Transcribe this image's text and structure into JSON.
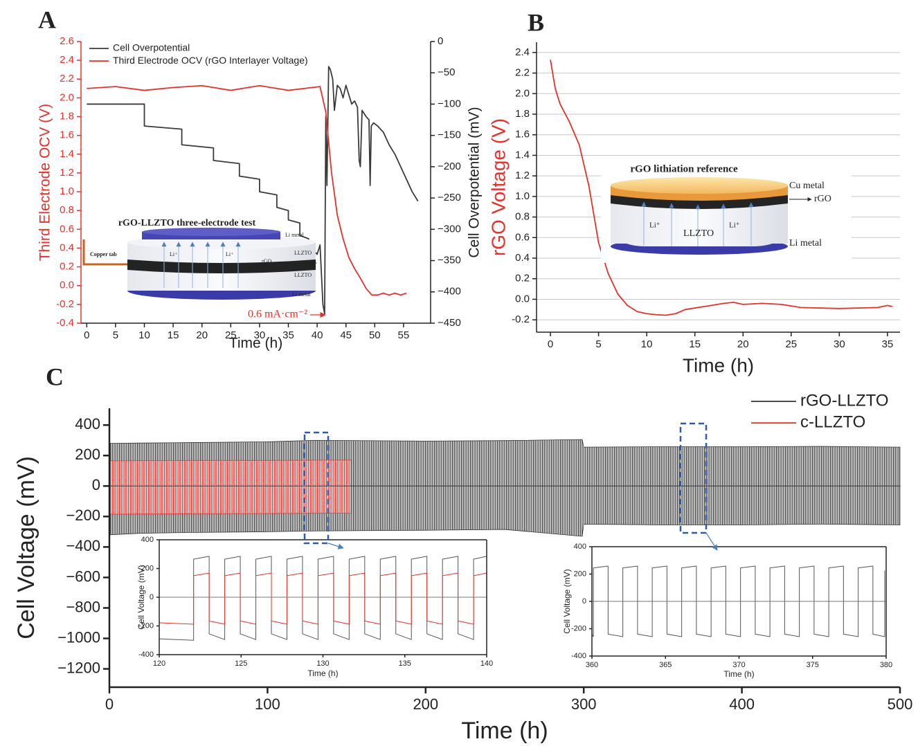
{
  "panel_labels": [
    "A",
    "B",
    "C"
  ],
  "diagram_a": {
    "title": "rGO-LLZTO three-electrode test",
    "li_metal_top": "Li metal",
    "llzto_top": "LLZTO",
    "rgo": "rGO",
    "llzto_bottom": "LLZTO",
    "li_metal_bottom": "Li metal",
    "copper_tab": "Copper tab",
    "li_ion_left": "Li⁺",
    "li_ion_right": "Li⁺"
  },
  "diagram_b": {
    "title": "rGO lithiation reference",
    "cu_metal": "Cu metal",
    "rgo": "rGO",
    "llzto": "LLZTO",
    "li_ion_left": "Li⁺",
    "li_ion_right": "Li⁺",
    "li_metal": "Li metal"
  },
  "chart_data": [
    {
      "type": "line",
      "x_label": "Time (h)",
      "y_label": "Third Electrode OCV (V)",
      "y2_label": "Cell Overpotential (mV)",
      "y_color": "#e8302a",
      "legend": "upper left",
      "annotation": "0.6 mA·cm⁻²",
      "xlim": [
        -1,
        59.7
      ],
      "xticks": [
        0,
        5,
        10,
        15,
        20,
        25,
        30,
        35,
        40,
        45,
        50,
        55
      ],
      "ylim": [
        -0.4,
        2.6
      ],
      "yticks": [
        -0.4,
        -0.2,
        {
          "value": 0,
          "label": "0.0"
        },
        0.2,
        0.4,
        0.6,
        0.8,
        {
          "value": 1,
          "label": "1.0"
        },
        1.2,
        1.4,
        1.6,
        1.8,
        {
          "value": 2,
          "label": "2.0"
        },
        2.2,
        2.4,
        2.6
      ],
      "y2lim": [
        -450,
        0
      ],
      "y2ticks": [
        0,
        {
          "value": -50,
          "label": "−50"
        },
        {
          "value": -100,
          "label": "−100"
        },
        {
          "value": -150,
          "label": "−150"
        },
        {
          "value": -200,
          "label": "−200"
        },
        {
          "value": -250,
          "label": "−250"
        },
        {
          "value": -300,
          "label": "−300"
        },
        {
          "value": -350,
          "label": "−350"
        },
        {
          "value": -400,
          "label": "−400"
        },
        {
          "value": -450,
          "label": "−450"
        }
      ],
      "series": [
        {
          "name": "Cell Overpotential",
          "color": "#3a3a3a",
          "axis": "y2",
          "x": [
            0,
            10,
            10,
            16.5,
            16.5,
            22,
            22,
            26.5,
            26.5,
            30,
            30,
            33,
            33,
            35,
            35,
            37,
            37,
            38.5,
            39,
            40,
            40.5,
            41,
            41.3,
            41.5,
            41.7,
            42,
            42.3,
            42.7,
            43,
            43.5,
            44,
            44.5,
            45,
            45.5,
            46,
            46.5,
            47,
            47.3,
            47.5,
            47.8,
            48.5,
            49,
            49.2,
            49.4,
            49.8,
            50.5,
            51.5,
            52.5,
            53.5,
            54.5,
            55.5,
            56.5,
            57.5
          ],
          "values": [
            -100,
            -100,
            -135,
            -140,
            -165,
            -170,
            -190,
            -195,
            -215,
            -220,
            -240,
            -245,
            -265,
            -270,
            -285,
            -290,
            -310,
            -315,
            -330,
            -340,
            -325,
            -420,
            -435,
            -120,
            -230,
            -40,
            -45,
            -60,
            -110,
            -70,
            -75,
            -90,
            -70,
            -85,
            -100,
            -95,
            -105,
            -190,
            -200,
            -110,
            -120,
            -125,
            -230,
            -135,
            -130,
            -135,
            -145,
            -165,
            -180,
            -200,
            -220,
            -240,
            -255
          ]
        },
        {
          "name": "Third Electrode OCV (rGO Interlayer Voltage)",
          "color": "#e8302a",
          "x": [
            0,
            5,
            10,
            15,
            20,
            25,
            30,
            35,
            40.5,
            41.5,
            42.5,
            43.5,
            44.5,
            45.5,
            46.5,
            47.5,
            48.5,
            49.5,
            50.5,
            51.5,
            52.5,
            53.5,
            54.5,
            55.5
          ],
          "values": [
            2.1,
            2.12,
            2.08,
            2.11,
            2.13,
            2.08,
            2.13,
            2.08,
            2.12,
            1.85,
            1.2,
            0.75,
            0.5,
            0.3,
            0.18,
            0.08,
            -0.03,
            -0.1,
            -0.1,
            -0.08,
            -0.1,
            -0.08,
            -0.1,
            -0.08
          ]
        }
      ]
    },
    {
      "type": "line",
      "x_label": "Time (h)",
      "y_label": "rGO Voltage (V)",
      "y_label_color": "#e8302a",
      "grid": true,
      "xlim": [
        -1.44,
        36.3
      ],
      "xticks": [
        0,
        5,
        10,
        15,
        20,
        25,
        30,
        35
      ],
      "ylim": [
        -0.32,
        2.5
      ],
      "yticks": [
        -0.2,
        {
          "value": 0,
          "label": "0.0"
        },
        0.2,
        0.4,
        0.6,
        0.8,
        {
          "value": 1,
          "label": "1.0"
        },
        1.2,
        1.4,
        1.6,
        1.8,
        {
          "value": 2,
          "label": "2.0"
        },
        2.2,
        2.4
      ],
      "series": [
        {
          "color": "#e8302a",
          "x": [
            0,
            0.5,
            1,
            2,
            3,
            4,
            5,
            6,
            7,
            8,
            9,
            10,
            11,
            12,
            13,
            14,
            16,
            18,
            19,
            20,
            22,
            24,
            26,
            30,
            34,
            35,
            35.5
          ],
          "values": [
            2.33,
            2.05,
            1.9,
            1.72,
            1.5,
            1.1,
            0.55,
            0.25,
            0.05,
            -0.06,
            -0.12,
            -0.14,
            -0.15,
            -0.155,
            -0.14,
            -0.1,
            -0.07,
            -0.04,
            -0.03,
            -0.05,
            -0.04,
            -0.05,
            -0.08,
            -0.09,
            -0.08,
            -0.06,
            -0.07
          ]
        }
      ]
    },
    {
      "type": "band",
      "x_label": "Time (h)",
      "y_label": "Cell Voltage (mV)",
      "legend": "upper right",
      "zero_line": true,
      "xlim": [
        0,
        500
      ],
      "xticks": [
        0,
        100,
        200,
        300,
        400,
        500
      ],
      "ylim": [
        -1320,
        510
      ],
      "yticks": [
        400,
        200,
        0,
        {
          "value": -200,
          "label": "−200"
        },
        {
          "value": -400,
          "label": "−400"
        },
        {
          "value": -600,
          "label": "−600"
        },
        {
          "value": -800,
          "label": "−800"
        },
        {
          "value": -1000,
          "label": "−1000"
        },
        {
          "value": -1200,
          "label": "−1200"
        }
      ],
      "series": [
        {
          "name": "rGO-LLZTO",
          "color": "#333333",
          "x": [
            0,
            20,
            50,
            100,
            130,
            200,
            250,
            299,
            300,
            350,
            400,
            450,
            500
          ],
          "high": [
            280,
            282,
            285,
            290,
            300,
            295,
            298,
            305,
            255,
            258,
            258,
            260,
            255
          ],
          "low": [
            -320,
            -310,
            -305,
            -300,
            -295,
            -290,
            -285,
            -330,
            -250,
            -255,
            -255,
            -250,
            -255
          ]
        },
        {
          "name": "c-LLZTO",
          "color": "#e8302a",
          "x": [
            0,
            50,
            100,
            153
          ],
          "high": [
            165,
            168,
            168,
            170
          ],
          "low": [
            -185,
            -182,
            -180,
            -178
          ]
        }
      ]
    },
    {
      "type": "line",
      "x_label": "Time (h)",
      "y_label": "Cell Voltage (mV)",
      "frame": true,
      "zero_line": true,
      "xlim": [
        120,
        140
      ],
      "xticks": [
        120,
        125,
        130,
        135,
        140
      ],
      "ylim": [
        -400,
        400
      ],
      "yticks": [
        -400,
        -200,
        0,
        200,
        400
      ],
      "series": [
        {
          "color": "#555555",
          "x": [
            120,
            122.1,
            122.1,
            123.05,
            123.05,
            124.0,
            124.0,
            124.95,
            124.95,
            125.9,
            125.9,
            126.85,
            126.85,
            127.8,
            127.8,
            128.75,
            128.75,
            129.7,
            129.7,
            130.65,
            130.65,
            131.6,
            131.6,
            132.55,
            132.55,
            133.5,
            133.5,
            134.45,
            134.45,
            135.4,
            135.4,
            136.35,
            136.35,
            137.3,
            137.3,
            138.25,
            138.25,
            139.2,
            139.2,
            140
          ],
          "values": [
            -290,
            -300,
            265,
            285,
            -255,
            -295,
            265,
            285,
            -255,
            -295,
            265,
            285,
            -255,
            -295,
            265,
            285,
            -255,
            -295,
            265,
            285,
            -255,
            -295,
            265,
            285,
            -255,
            -295,
            265,
            285,
            -255,
            -295,
            265,
            285,
            -255,
            -295,
            265,
            285,
            -255,
            -295,
            265,
            285
          ]
        },
        {
          "color": "#e8302a",
          "x": [
            120,
            122.1,
            122.1,
            123.05,
            123.05,
            124.0,
            124.0,
            124.95,
            124.95,
            125.9,
            125.9,
            126.85,
            126.85,
            127.8,
            127.8,
            128.75,
            128.75,
            129.7,
            129.7,
            130.65,
            130.65,
            131.6,
            131.6,
            132.55,
            132.55,
            133.5,
            133.5,
            134.45,
            134.45,
            135.4,
            135.4,
            136.35,
            136.35,
            137.3,
            137.3,
            138.25,
            138.25,
            139.2,
            139.2,
            140
          ],
          "values": [
            -178,
            -188,
            150,
            168,
            -165,
            -188,
            150,
            168,
            -165,
            -188,
            150,
            168,
            -165,
            -188,
            150,
            168,
            -165,
            -188,
            150,
            168,
            -165,
            -188,
            150,
            168,
            -165,
            -188,
            150,
            168,
            -165,
            -188,
            150,
            168,
            -165,
            -188,
            150,
            168,
            -165,
            -188,
            150,
            168
          ]
        }
      ]
    },
    {
      "type": "line",
      "x_label": "Time (h)",
      "y_label": "Cell Voltage (mV)",
      "frame": true,
      "zero_line": true,
      "xlim": [
        360,
        380
      ],
      "xticks": [
        360,
        365,
        370,
        375,
        380
      ],
      "ylim": [
        -400,
        400
      ],
      "yticks": [
        -400,
        -200,
        0,
        200,
        400
      ],
      "series": [
        {
          "color": "#555555",
          "x": [
            360,
            360.1,
            360.1,
            361.1,
            361.1,
            362.1,
            362.1,
            363.1,
            363.1,
            364.1,
            364.1,
            365.1,
            365.1,
            366.1,
            366.1,
            367.1,
            367.1,
            368.1,
            368.1,
            369.1,
            369.1,
            370.1,
            370.1,
            371.1,
            371.1,
            372.1,
            372.1,
            373.1,
            373.1,
            374.1,
            374.1,
            375.1,
            375.1,
            376.1,
            376.1,
            377.1,
            377.1,
            378.1,
            378.1,
            379.1,
            379.1,
            379.9,
            379.9
          ],
          "values": [
            -240,
            -258,
            245,
            258,
            -240,
            -258,
            245,
            258,
            -240,
            -258,
            245,
            258,
            -240,
            -258,
            245,
            258,
            -240,
            -258,
            245,
            258,
            -240,
            -258,
            245,
            258,
            -240,
            -258,
            245,
            258,
            -240,
            -258,
            245,
            258,
            -240,
            -258,
            245,
            258,
            -240,
            -258,
            245,
            258,
            -240,
            -258,
            225
          ]
        }
      ]
    }
  ]
}
